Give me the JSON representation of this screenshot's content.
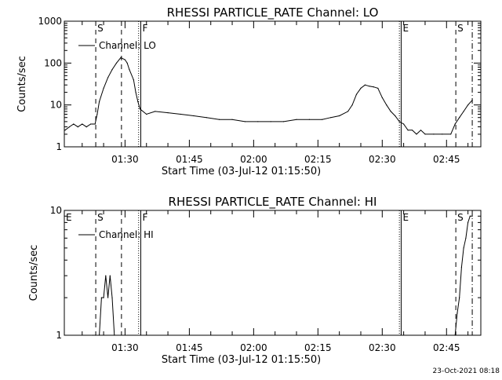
{
  "footer": {
    "timestamp": "23-Oct-2021 08:18"
  },
  "chart_data": [
    {
      "type": "line",
      "title": "RHESSI PARTICLE_RATE Channel: LO",
      "xlabel": "Start Time (03-Jul-12 01:15:50)",
      "ylabel": "Counts/sec",
      "legend": "Channel: LO",
      "legend_position": "top-left",
      "yscale": "log",
      "xlim": [
        "01:15:50",
        "02:53:00"
      ],
      "ylim": [
        1,
        1000
      ],
      "x_ticks": [
        "01:30",
        "01:45",
        "02:00",
        "02:15",
        "02:30",
        "02:45"
      ],
      "y_ticks": [
        "1",
        "10",
        "100",
        "1000"
      ],
      "markers": [
        {
          "time": "01:15:50",
          "style": "dotted",
          "label": ""
        },
        {
          "time": "01:23:10",
          "style": "dashed",
          "label": "S"
        },
        {
          "time": "01:29:10",
          "style": "dashed",
          "label": ""
        },
        {
          "time": "01:33:10",
          "style": "dotted",
          "label": ""
        },
        {
          "time": "01:33:40",
          "style": "solid",
          "label": "F"
        },
        {
          "time": "02:34:00",
          "style": "dotted",
          "label": ""
        },
        {
          "time": "02:34:25",
          "style": "solid",
          "label": "E"
        },
        {
          "time": "02:47:10",
          "style": "dashed",
          "label": "S"
        },
        {
          "time": "02:51:00",
          "style": "dashdot",
          "label": ""
        }
      ],
      "series": [
        {
          "name": "Channel: LO",
          "x": [
            "01:16:00",
            "01:17:00",
            "01:18:00",
            "01:19:00",
            "01:20:00",
            "01:21:00",
            "01:22:00",
            "01:22:30",
            "01:23:00",
            "01:23:30",
            "01:24:00",
            "01:25:00",
            "01:26:00",
            "01:27:00",
            "01:28:00",
            "01:29:00",
            "01:30:00",
            "01:30:30",
            "01:31:00",
            "01:32:00",
            "01:32:30",
            "01:33:00",
            "01:33:30",
            "01:35:00",
            "01:37:00",
            "01:40:00",
            "01:43:00",
            "01:46:00",
            "01:49:00",
            "01:52:00",
            "01:55:00",
            "01:58:00",
            "02:01:00",
            "02:04:00",
            "02:07:00",
            "02:10:00",
            "02:13:00",
            "02:16:00",
            "02:18:00",
            "02:20:00",
            "02:22:00",
            "02:23:00",
            "02:24:00",
            "02:25:00",
            "02:26:00",
            "02:27:00",
            "02:28:00",
            "02:29:00",
            "02:30:00",
            "02:31:00",
            "02:32:00",
            "02:33:00",
            "02:34:00",
            "02:35:00",
            "02:36:00",
            "02:37:00",
            "02:38:00",
            "02:39:00",
            "02:40:00",
            "02:42:00",
            "02:44:00",
            "02:46:00",
            "02:47:00",
            "02:48:00",
            "02:49:00",
            "02:50:00",
            "02:51:00"
          ],
          "y": [
            2.5,
            3,
            3.5,
            3,
            3.5,
            3,
            3.5,
            3.5,
            3.5,
            6,
            12,
            25,
            45,
            70,
            100,
            135,
            120,
            100,
            70,
            40,
            20,
            12,
            8,
            6,
            7,
            6.5,
            6,
            5.5,
            5,
            4.5,
            4.5,
            4,
            4,
            4,
            4,
            4.5,
            4.5,
            4.5,
            5,
            5.5,
            7,
            10,
            18,
            25,
            30,
            28,
            27,
            25,
            15,
            10,
            7,
            5.5,
            4,
            3.5,
            2.5,
            2.5,
            2,
            2.5,
            2,
            2,
            2,
            2,
            3.5,
            5,
            7,
            10,
            13
          ]
        }
      ]
    },
    {
      "type": "line",
      "title": "RHESSI PARTICLE_RATE Channel: HI",
      "xlabel": "Start Time (03-Jul-12 01:15:50)",
      "ylabel": "Counts/sec",
      "legend": "Channel: HI",
      "legend_position": "top-left",
      "yscale": "log",
      "xlim": [
        "01:15:50",
        "02:53:00"
      ],
      "ylim": [
        1,
        10
      ],
      "x_ticks": [
        "01:30",
        "01:45",
        "02:00",
        "02:15",
        "02:30",
        "02:45"
      ],
      "y_ticks": [
        "1",
        "10"
      ],
      "markers": [
        {
          "time": "01:15:50",
          "style": "dotted",
          "label": "E"
        },
        {
          "time": "01:23:10",
          "style": "dashed",
          "label": "S"
        },
        {
          "time": "01:29:10",
          "style": "dashed",
          "label": ""
        },
        {
          "time": "01:33:10",
          "style": "dotted",
          "label": ""
        },
        {
          "time": "01:33:40",
          "style": "solid",
          "label": "F"
        },
        {
          "time": "02:34:00",
          "style": "dotted",
          "label": ""
        },
        {
          "time": "02:34:25",
          "style": "solid",
          "label": "E"
        },
        {
          "time": "02:47:10",
          "style": "dashed",
          "label": "S"
        },
        {
          "time": "02:51:00",
          "style": "dashdot",
          "label": ""
        }
      ],
      "series": [
        {
          "name": "Channel: HI",
          "x": [
            "01:22:30",
            "01:23:00",
            "01:24:00",
            "01:24:30",
            "01:25:00",
            "01:25:30",
            "01:26:00",
            "01:26:30",
            "01:27:00",
            "01:27:30",
            "02:47:00",
            "02:47:30",
            "02:48:00",
            "02:48:30",
            "02:49:00",
            "02:49:30",
            "02:50:00",
            "02:50:30",
            "02:51:00"
          ],
          "y": [
            1,
            1,
            1,
            2,
            2,
            3,
            2,
            3,
            2,
            1,
            1,
            1.5,
            2,
            3.5,
            5,
            6,
            8,
            9,
            9
          ]
        }
      ]
    }
  ]
}
